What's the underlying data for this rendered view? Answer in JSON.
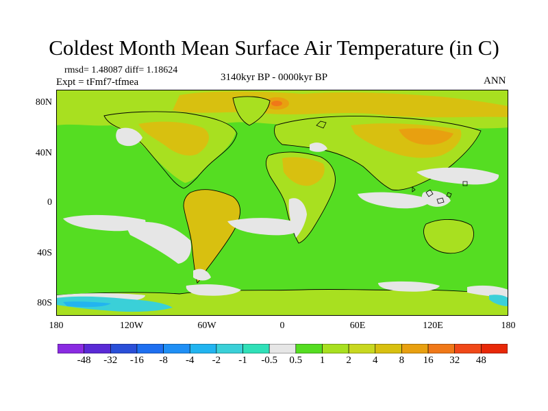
{
  "header": {
    "title": "Coldest Month Mean Surface Air Temperature (in C)",
    "stats": "rmsd= 1.48087 diff= 1.18624",
    "experiment": "Expt = tFmf7-tfmea",
    "period": "3140kyr BP - 0000kyr BP",
    "season": "ANN"
  },
  "axes": {
    "lat_ticks": [
      "80N",
      "40N",
      "0",
      "40S",
      "80S"
    ],
    "lon_ticks": [
      "180",
      "120W",
      "60W",
      "0",
      "60E",
      "120E",
      "180"
    ]
  },
  "colorbar": {
    "labels": [
      "-48",
      "-32",
      "-16",
      "-8",
      "-4",
      "-2",
      "-1",
      "-0.5",
      "0.5",
      "1",
      "2",
      "4",
      "8",
      "16",
      "32",
      "48"
    ],
    "colors": [
      "#8a2be2",
      "#5a2ad6",
      "#2a4fd8",
      "#1e6ff0",
      "#1f8ff5",
      "#22b4f0",
      "#3ad0d8",
      "#30e0b8",
      "#e6e6e6",
      "#55dd22",
      "#a8e020",
      "#c8d820",
      "#d8c010",
      "#e8a010",
      "#f07818",
      "#f04818",
      "#e82808"
    ]
  },
  "map_colors": {
    "ocean_base": "#55dd22",
    "land_base": "#a8e020",
    "warm": "#d8c010",
    "warmer": "#e8a010",
    "hot": "#f07818",
    "neutral": "#e6e6e6",
    "cool": "#3ad0d8",
    "cold": "#22b4f0",
    "outline": "#000000"
  }
}
